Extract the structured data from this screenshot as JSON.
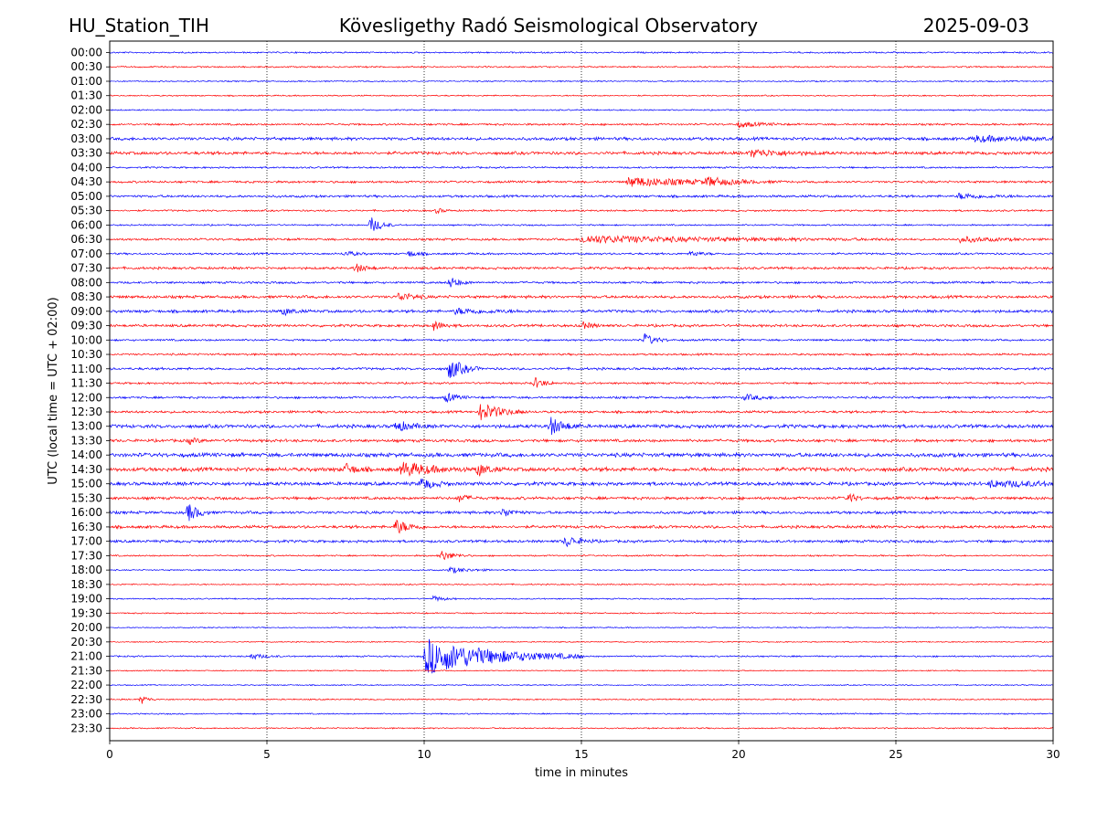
{
  "header": {
    "station": "HU_Station_TIH",
    "title": "Kövesligethy Radó Seismological Observatory",
    "date": "2025-09-03"
  },
  "chart_data": {
    "type": "line",
    "chart_kind": "helicorder",
    "xlabel": "time in minutes",
    "ylabel": "UTC (local time = UTC + 02:00)",
    "xlim": [
      0,
      30
    ],
    "x_ticks": [
      "0",
      "5",
      "10",
      "15",
      "20",
      "25",
      "30"
    ],
    "grid": "vertical dotted lines at every 5 minutes",
    "colors": [
      "#0000ff",
      "#ff0000"
    ],
    "rows": [
      {
        "label": "00:00",
        "noise": 0.7,
        "events": []
      },
      {
        "label": "00:30",
        "noise": 0.7,
        "events": []
      },
      {
        "label": "01:00",
        "noise": 0.6,
        "events": []
      },
      {
        "label": "01:30",
        "noise": 0.6,
        "events": []
      },
      {
        "label": "02:00",
        "noise": 0.6,
        "events": []
      },
      {
        "label": "02:30",
        "noise": 0.9,
        "events": [
          {
            "t": 20.0,
            "amp": 3,
            "dur": 0.6
          }
        ]
      },
      {
        "label": "03:00",
        "noise": 1.4,
        "events": [
          {
            "t": 27.5,
            "amp": 3,
            "dur": 1.5
          }
        ]
      },
      {
        "label": "03:30",
        "noise": 1.4,
        "events": [
          {
            "t": 20.4,
            "amp": 4,
            "dur": 1.0
          }
        ]
      },
      {
        "label": "04:00",
        "noise": 0.8,
        "events": []
      },
      {
        "label": "04:30",
        "noise": 1.0,
        "events": [
          {
            "t": 16.5,
            "amp": 5,
            "dur": 2.0
          },
          {
            "t": 19.0,
            "amp": 4,
            "dur": 0.6
          }
        ]
      },
      {
        "label": "05:00",
        "noise": 1.1,
        "events": [
          {
            "t": 27.0,
            "amp": 3,
            "dur": 0.8
          }
        ]
      },
      {
        "label": "05:30",
        "noise": 0.8,
        "events": [
          {
            "t": 10.4,
            "amp": 3,
            "dur": 0.2
          }
        ]
      },
      {
        "label": "06:00",
        "noise": 0.7,
        "events": [
          {
            "t": 8.3,
            "amp": 9,
            "dur": 0.3
          }
        ]
      },
      {
        "label": "06:30",
        "noise": 1.0,
        "events": [
          {
            "t": 15.0,
            "amp": 4,
            "dur": 4.0
          },
          {
            "t": 27.0,
            "amp": 3,
            "dur": 1.0
          }
        ]
      },
      {
        "label": "07:00",
        "noise": 0.9,
        "events": [
          {
            "t": 7.5,
            "amp": 3,
            "dur": 0.3
          },
          {
            "t": 9.5,
            "amp": 3,
            "dur": 0.3
          },
          {
            "t": 18.5,
            "amp": 3,
            "dur": 0.3
          }
        ]
      },
      {
        "label": "07:30",
        "noise": 1.1,
        "events": [
          {
            "t": 7.8,
            "amp": 5,
            "dur": 0.3
          }
        ]
      },
      {
        "label": "08:00",
        "noise": 1.0,
        "events": [
          {
            "t": 10.8,
            "amp": 6,
            "dur": 0.3
          }
        ]
      },
      {
        "label": "08:30",
        "noise": 1.3,
        "events": [
          {
            "t": 9.2,
            "amp": 5,
            "dur": 0.4
          }
        ]
      },
      {
        "label": "09:00",
        "noise": 1.3,
        "events": [
          {
            "t": 5.5,
            "amp": 4,
            "dur": 0.3
          },
          {
            "t": 11.0,
            "amp": 3,
            "dur": 1.0
          }
        ]
      },
      {
        "label": "09:30",
        "noise": 1.2,
        "events": [
          {
            "t": 10.3,
            "amp": 5,
            "dur": 0.3
          },
          {
            "t": 15.0,
            "amp": 4,
            "dur": 0.3
          }
        ]
      },
      {
        "label": "10:00",
        "noise": 0.9,
        "events": [
          {
            "t": 17.0,
            "amp": 7,
            "dur": 0.3
          }
        ]
      },
      {
        "label": "10:30",
        "noise": 0.9,
        "events": []
      },
      {
        "label": "11:00",
        "noise": 1.1,
        "events": [
          {
            "t": 10.8,
            "amp": 12,
            "dur": 0.4
          }
        ]
      },
      {
        "label": "11:30",
        "noise": 0.9,
        "events": [
          {
            "t": 13.5,
            "amp": 6,
            "dur": 0.3
          }
        ]
      },
      {
        "label": "12:00",
        "noise": 1.0,
        "events": [
          {
            "t": 10.7,
            "amp": 5,
            "dur": 0.3
          },
          {
            "t": 20.2,
            "amp": 3,
            "dur": 0.6
          }
        ]
      },
      {
        "label": "12:30",
        "noise": 1.1,
        "events": [
          {
            "t": 11.8,
            "amp": 10,
            "dur": 0.6
          }
        ]
      },
      {
        "label": "13:00",
        "noise": 1.6,
        "events": [
          {
            "t": 9.1,
            "amp": 6,
            "dur": 0.4
          },
          {
            "t": 14.0,
            "amp": 10,
            "dur": 0.4
          }
        ]
      },
      {
        "label": "13:30",
        "noise": 1.3,
        "events": [
          {
            "t": 2.5,
            "amp": 3,
            "dur": 0.3
          }
        ]
      },
      {
        "label": "14:00",
        "noise": 1.8,
        "events": []
      },
      {
        "label": "14:30",
        "noise": 1.8,
        "events": [
          {
            "t": 7.5,
            "amp": 6,
            "dur": 0.3
          },
          {
            "t": 9.3,
            "amp": 8,
            "dur": 0.8
          },
          {
            "t": 11.7,
            "amp": 7,
            "dur": 0.3
          }
        ]
      },
      {
        "label": "15:00",
        "noise": 1.6,
        "events": [
          {
            "t": 9.9,
            "amp": 6,
            "dur": 0.4
          },
          {
            "t": 28.0,
            "amp": 3,
            "dur": 2.0
          }
        ]
      },
      {
        "label": "15:30",
        "noise": 1.3,
        "events": [
          {
            "t": 11.1,
            "amp": 4,
            "dur": 0.3
          },
          {
            "t": 23.5,
            "amp": 6,
            "dur": 0.2
          }
        ]
      },
      {
        "label": "16:00",
        "noise": 1.3,
        "events": [
          {
            "t": 2.5,
            "amp": 10,
            "dur": 0.3
          },
          {
            "t": 12.5,
            "amp": 5,
            "dur": 0.3
          }
        ]
      },
      {
        "label": "16:30",
        "noise": 1.3,
        "events": [
          {
            "t": 9.1,
            "amp": 8,
            "dur": 0.4
          }
        ]
      },
      {
        "label": "17:00",
        "noise": 1.2,
        "events": [
          {
            "t": 14.5,
            "amp": 6,
            "dur": 0.4
          }
        ]
      },
      {
        "label": "17:30",
        "noise": 0.7,
        "events": [
          {
            "t": 10.5,
            "amp": 6,
            "dur": 0.4
          }
        ]
      },
      {
        "label": "18:00",
        "noise": 0.6,
        "events": [
          {
            "t": 10.8,
            "amp": 3,
            "dur": 0.6
          }
        ]
      },
      {
        "label": "18:30",
        "noise": 0.6,
        "events": []
      },
      {
        "label": "19:00",
        "noise": 0.6,
        "events": [
          {
            "t": 10.3,
            "amp": 3,
            "dur": 0.3
          }
        ]
      },
      {
        "label": "19:30",
        "noise": 0.6,
        "events": []
      },
      {
        "label": "20:00",
        "noise": 0.5,
        "events": []
      },
      {
        "label": "20:30",
        "noise": 0.5,
        "events": []
      },
      {
        "label": "21:00",
        "noise": 0.7,
        "events": [
          {
            "t": 10.05,
            "amp": 20,
            "dur": 2.0
          },
          {
            "t": 4.5,
            "amp": 3,
            "dur": 0.4
          }
        ]
      },
      {
        "label": "21:30",
        "noise": 0.5,
        "events": []
      },
      {
        "label": "22:00",
        "noise": 0.5,
        "events": []
      },
      {
        "label": "22:30",
        "noise": 0.6,
        "events": [
          {
            "t": 1.0,
            "amp": 5,
            "dur": 0.2
          }
        ]
      },
      {
        "label": "23:00",
        "noise": 0.6,
        "events": []
      },
      {
        "label": "23:30",
        "noise": 0.6,
        "events": []
      }
    ]
  }
}
